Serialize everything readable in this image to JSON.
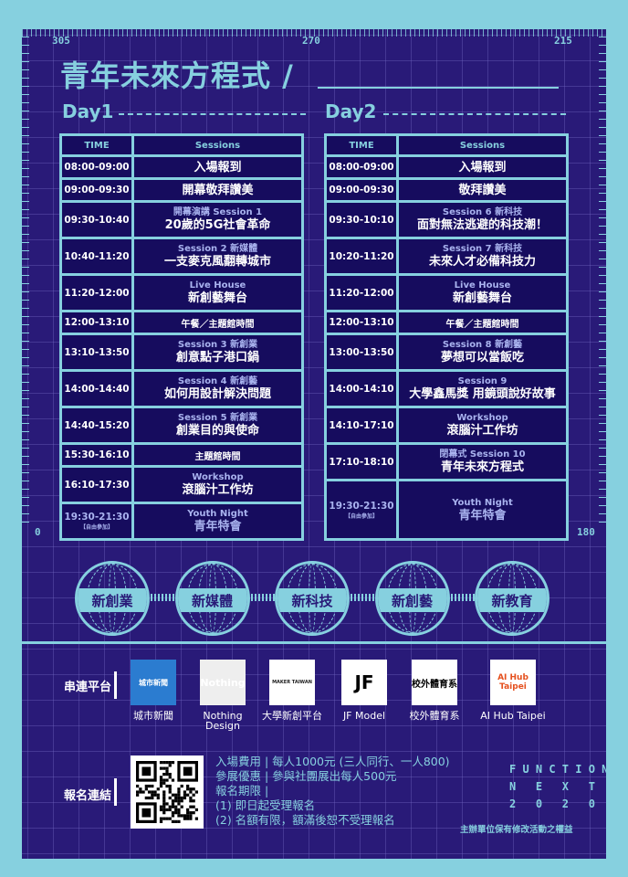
{
  "ruler": {
    "left": "305",
    "center": "270",
    "right": "215",
    "side_left": "0",
    "side_right": "180"
  },
  "title": "青年未來方程式 /",
  "day1": {
    "label": "Day1",
    "header": {
      "time": "TIME",
      "sessions": "Sessions"
    },
    "rows": [
      {
        "time": "08:00-09:00",
        "main": "入場報到"
      },
      {
        "time": "09:00-09:30",
        "main": "開幕敬拜讚美"
      },
      {
        "time": "09:30-10:40",
        "sub": "開幕演講 Session 1",
        "main": "20歲的5G社會革命"
      },
      {
        "time": "10:40-11:20",
        "sub": "Session 2 新媒體",
        "main": "一支麥克風翻轉城市"
      },
      {
        "time": "11:20-12:00",
        "sub": "Live House",
        "main": "新創藝舞台"
      },
      {
        "time": "12:00-13:10",
        "small": "午餐／主題館時間"
      },
      {
        "time": "13:10-13:50",
        "sub": "Session 3 新創業",
        "main": "創意點子港口鍋"
      },
      {
        "time": "14:00-14:40",
        "sub": "Session 4 新創藝",
        "main": "如何用設計解決問題"
      },
      {
        "time": "14:40-15:20",
        "sub": "Session 5 新創業",
        "main": "創業目的與使命"
      },
      {
        "time": "15:30-16:10",
        "small": "主題館時間"
      },
      {
        "time": "16:10-17:30",
        "sub": "Workshop",
        "main": "滾腦汁工作坊"
      },
      {
        "time": "19:30-21:30",
        "note": "【自由參加】",
        "sub": "Youth Night",
        "main": "青年特會",
        "dim": true
      }
    ]
  },
  "day2": {
    "label": "Day2",
    "header": {
      "time": "TIME",
      "sessions": "Sessions"
    },
    "rows": [
      {
        "time": "08:00-09:00",
        "main": "入場報到"
      },
      {
        "time": "09:00-09:30",
        "main": "敬拜讚美"
      },
      {
        "time": "09:30-10:10",
        "sub": "Session 6 新科技",
        "main": "面對無法逃避的科技潮！"
      },
      {
        "time": "10:20-11:20",
        "sub": "Session 7 新科技",
        "main": "未來人才必備科技力"
      },
      {
        "time": "11:20-12:00",
        "sub": "Live House",
        "main": "新創藝舞台"
      },
      {
        "time": "12:00-13:10",
        "small": "午餐／主題館時間"
      },
      {
        "time": "13:00-13:50",
        "sub": "Session 8 新創藝",
        "main": "夢想可以當飯吃"
      },
      {
        "time": "14:00-14:10",
        "sub": "Session 9",
        "main": "大學鑫馬獎 用鏡頭說好故事"
      },
      {
        "time": "14:10-17:10",
        "sub": "Workshop",
        "main": "滾腦汁工作坊"
      },
      {
        "time": "17:10-18:10",
        "sub": "閉幕式 Session 10",
        "main": "青年未來方程式"
      },
      {
        "time": "19:30-21:30",
        "note": "【自由參加】",
        "sub": "Youth Night",
        "main": "青年特會",
        "dim": true
      }
    ]
  },
  "themes": [
    "新創業",
    "新媒體",
    "新科技",
    "新創藝",
    "新教育"
  ],
  "partners": {
    "label": "串連平台",
    "items": [
      {
        "name": "城市新聞",
        "logo": "城市新聞"
      },
      {
        "name": "Nothing Design",
        "logo": "Nothing"
      },
      {
        "name": "大學新創平台",
        "logo": "MAKER TAIWAN"
      },
      {
        "name": "JF Model",
        "logo": "JF"
      },
      {
        "name": "校外體育系",
        "logo": "校外體育系"
      },
      {
        "name": "AI Hub Taipei",
        "logo": "AI Hub Taipei"
      }
    ]
  },
  "registration": {
    "label": "報名連結",
    "lines": [
      "入場費用 | 每人1000元 (三人同行、一人800)",
      "參展優惠 | 參與社團展出每人500元",
      "報名期限 |",
      "(1) 即日起受理報名",
      "(2) 名額有限，額滿後恕不受理報名"
    ]
  },
  "brand": [
    "F U N C T I O N",
    "N   E   X   T",
    "2   0   2   0"
  ],
  "rights": "主辦單位保有修改活動之權益",
  "colors": {
    "background": "#86d0df",
    "panel": "#291a78",
    "cell": "#160c5e",
    "accent": "#86d0df"
  }
}
